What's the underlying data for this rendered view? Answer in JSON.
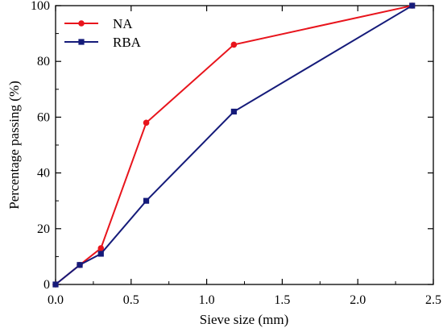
{
  "chart_data": {
    "type": "line",
    "title": "",
    "xlabel": "Sieve size (mm)",
    "ylabel": "Percentage passing (%)",
    "xlim": [
      0.0,
      2.5
    ],
    "ylim": [
      0,
      100
    ],
    "xticks": [
      "0.0",
      "0.5",
      "1.0",
      "1.5",
      "2.0",
      "2.5"
    ],
    "yticks": [
      "0",
      "20",
      "40",
      "60",
      "80",
      "100"
    ],
    "grid": false,
    "legend_position": "top-left",
    "series": [
      {
        "name": "NA",
        "color": "#e8141c",
        "marker": "circle",
        "x": [
          0,
          0.16,
          0.3,
          0.6,
          1.18,
          2.36
        ],
        "y": [
          0,
          7,
          13,
          58,
          86,
          100
        ]
      },
      {
        "name": "RBA",
        "color": "#151b7a",
        "marker": "square",
        "x": [
          0,
          0.16,
          0.3,
          0.6,
          1.18,
          2.36
        ],
        "y": [
          0,
          7,
          11,
          30,
          62,
          100
        ]
      }
    ]
  }
}
